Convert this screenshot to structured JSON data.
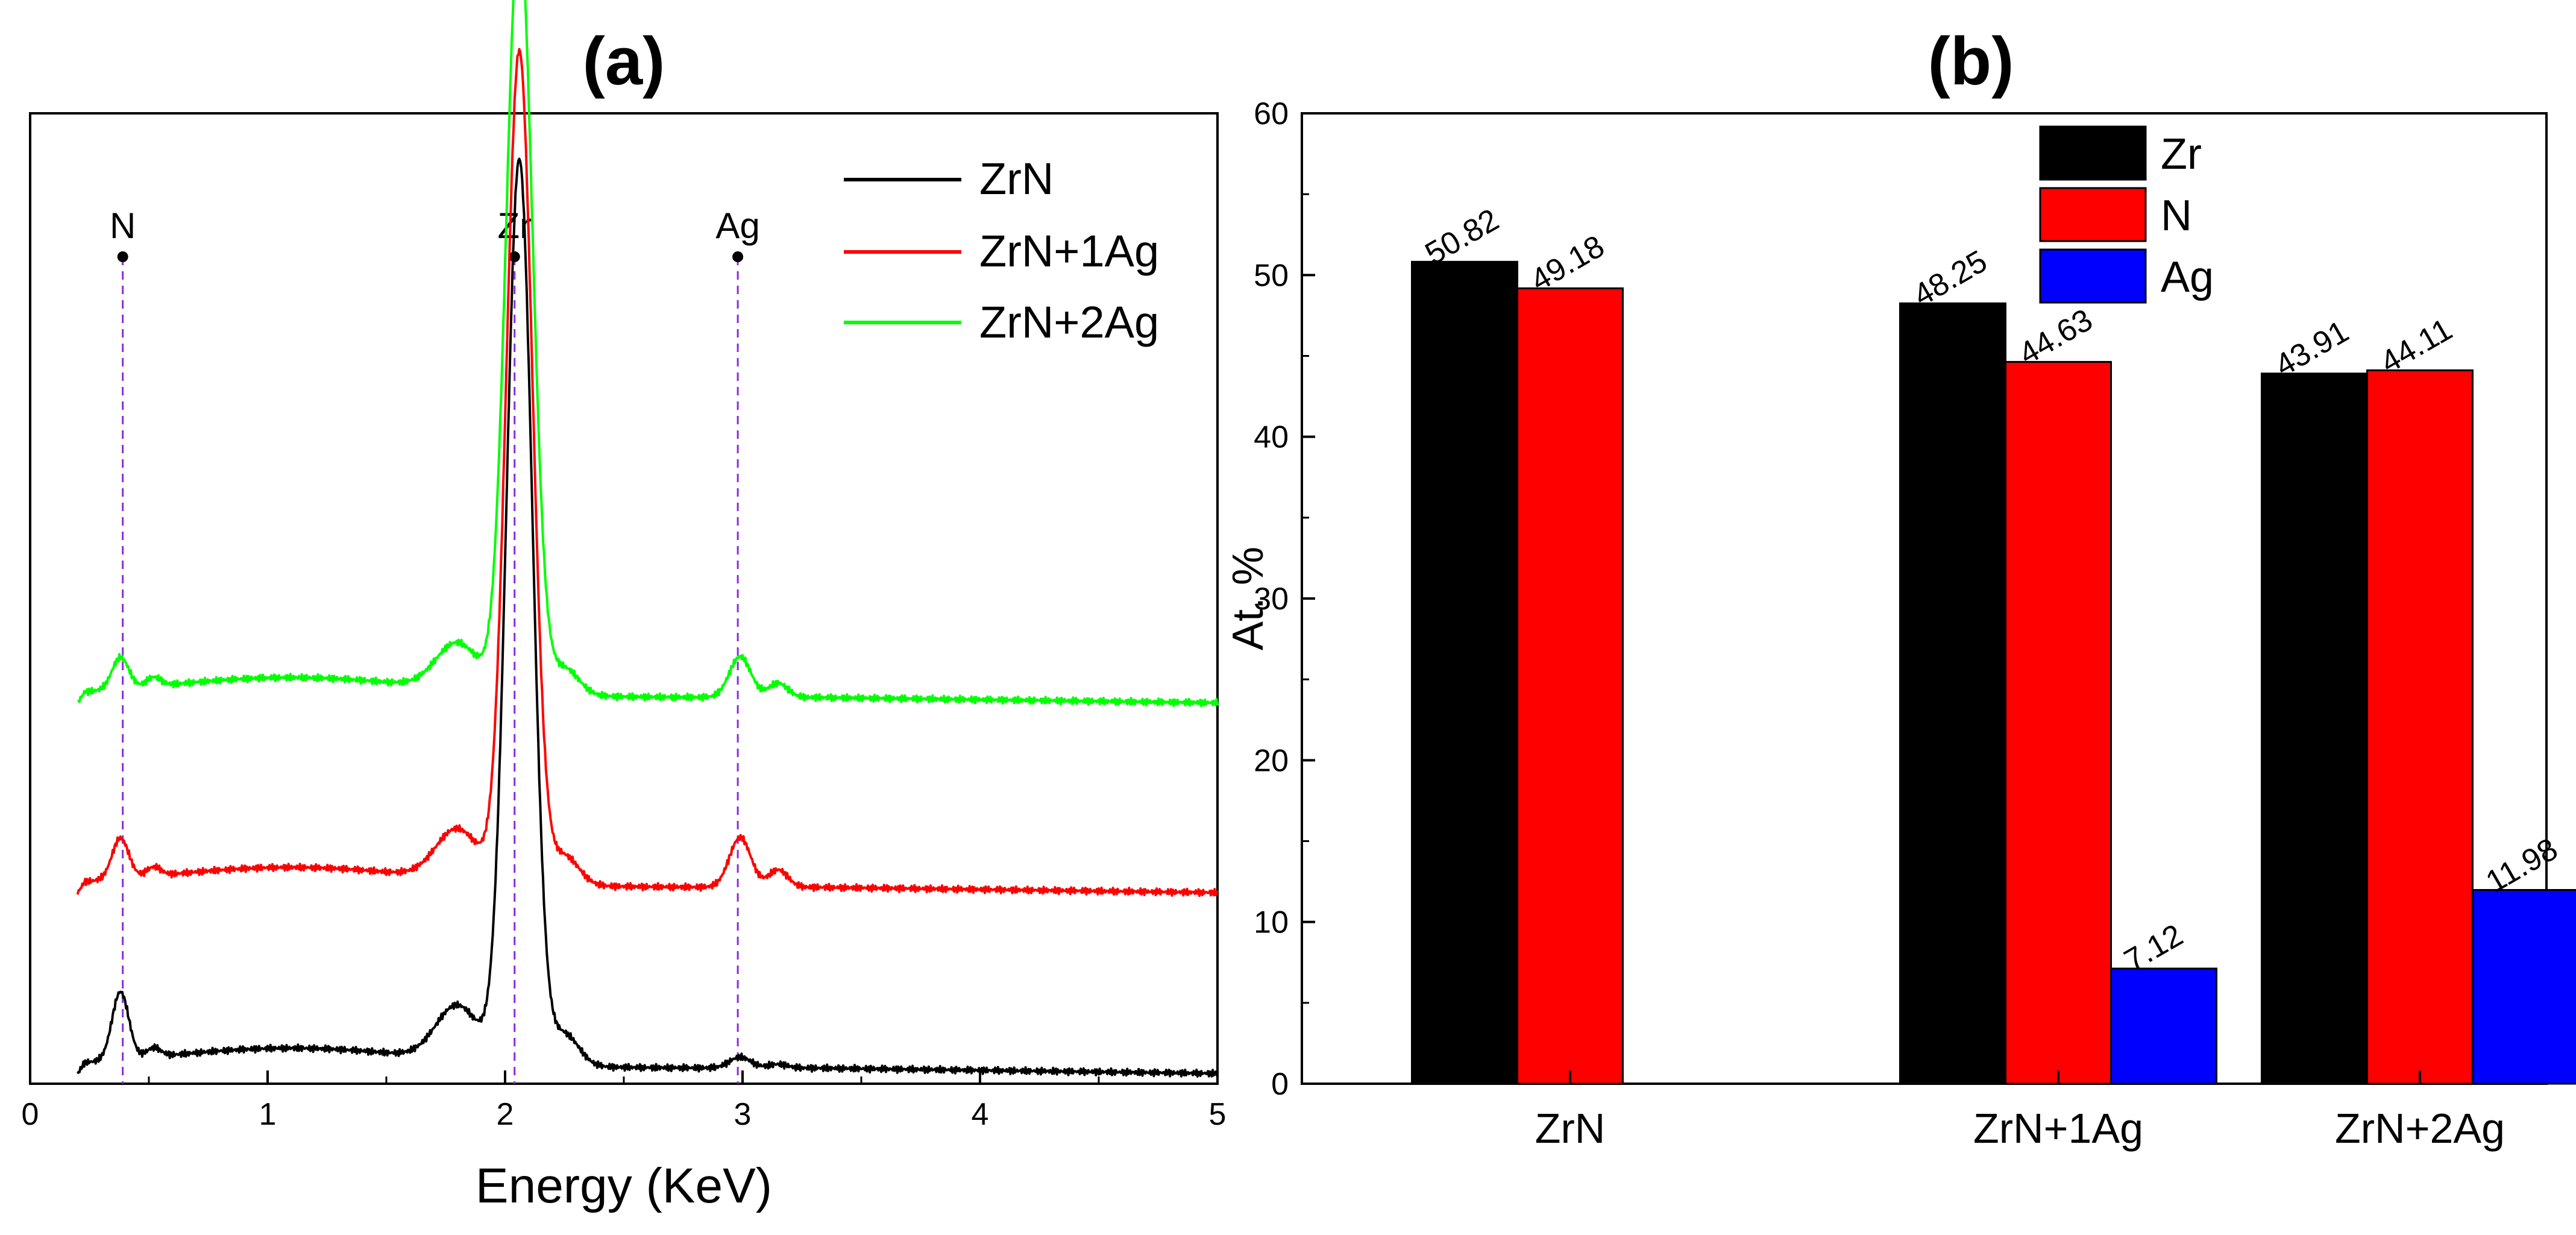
{
  "chart_data": [
    {
      "panel": "(a)",
      "type": "line",
      "title": "(a)",
      "xlabel": "Energy (KeV)",
      "ylabel": "",
      "xlim": [
        0,
        5
      ],
      "xticks": [
        "0",
        "1",
        "2",
        "3",
        "4",
        "5"
      ],
      "grid": false,
      "legend_position": "top-right",
      "series": [
        {
          "name": "ZrN",
          "color": "#000000",
          "baseline": 0.0,
          "peak_zr": 1.0,
          "peak_n": 0.075,
          "peak_ag": 0.012
        },
        {
          "name": "ZrN+1Ag",
          "color": "#ff0000",
          "baseline": 0.2,
          "peak_zr": 0.92,
          "peak_n": 0.045,
          "peak_ag": 0.055
        },
        {
          "name": "ZrN+2Ag",
          "color": "#00ff00",
          "baseline": 0.41,
          "peak_zr": 0.85,
          "peak_n": 0.035,
          "peak_ag": 0.045
        }
      ],
      "reference_lines": [
        {
          "label": "N",
          "x": 0.39
        },
        {
          "label": "Zr",
          "x": 2.04
        },
        {
          "label": "Ag",
          "x": 2.98
        }
      ]
    },
    {
      "panel": "(b)",
      "type": "bar",
      "title": "(b)",
      "xlabel": "",
      "ylabel": "At. %",
      "ylim": [
        0,
        60
      ],
      "yticks": [
        "0",
        "10",
        "20",
        "30",
        "40",
        "50",
        "60"
      ],
      "grid": false,
      "legend_position": "top-center",
      "categories": [
        "ZrN",
        "ZrN+1Ag",
        "ZrN+2Ag"
      ],
      "series": [
        {
          "name": "Zr",
          "color": "#000000",
          "values": [
            50.82,
            48.25,
            43.91
          ],
          "labels": [
            "50.82",
            "48.25",
            "43.91"
          ]
        },
        {
          "name": "N",
          "color": "#ff0000",
          "values": [
            49.18,
            44.63,
            44.11
          ],
          "labels": [
            "49.18",
            "44.63",
            "44.11"
          ]
        },
        {
          "name": "Ag",
          "color": "#0000ff",
          "values": [
            null,
            7.12,
            11.98
          ],
          "labels": [
            null,
            "7.12",
            "11.98"
          ]
        }
      ]
    }
  ]
}
